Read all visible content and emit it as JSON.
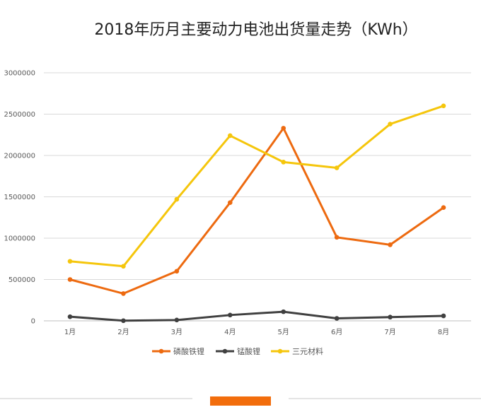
{
  "chart_data": {
    "type": "line",
    "title": "2018年历月主要动力电池出货量走势（KWh）",
    "categories": [
      "1月",
      "2月",
      "3月",
      "4月",
      "5月",
      "6月",
      "7月",
      "8月"
    ],
    "ylim": [
      0,
      3000000
    ],
    "yticks": [
      "0",
      "500000",
      "1000000",
      "1500000",
      "2000000",
      "2500000",
      "3000000"
    ],
    "grid": true,
    "legend_position": "bottom",
    "series": [
      {
        "name": "磷酸铁锂",
        "color": "#ed6a10",
        "values": [
          500000,
          330000,
          600000,
          1430000,
          2330000,
          1010000,
          920000,
          1370000
        ]
      },
      {
        "name": "锰酸锂",
        "color": "#404040",
        "values": [
          50000,
          2000,
          10000,
          70000,
          110000,
          30000,
          45000,
          60000
        ]
      },
      {
        "name": "三元材料",
        "color": "#f5c60c",
        "values": [
          720000,
          660000,
          1470000,
          2240000,
          1920000,
          1850000,
          2380000,
          2600000
        ]
      }
    ]
  },
  "footer_bar_color": "#f26d0c",
  "divider_color": "#e5e5e5"
}
